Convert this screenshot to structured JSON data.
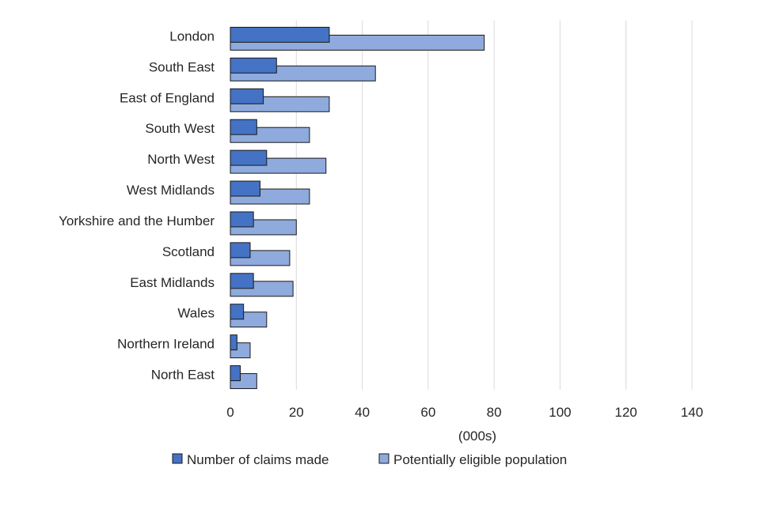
{
  "chart_data": {
    "type": "bar",
    "orientation": "horizontal",
    "title": "",
    "xlabel": "(000s)",
    "ylabel": "",
    "xlim": [
      0,
      140
    ],
    "xticks": [
      0,
      20,
      40,
      60,
      80,
      100,
      120,
      140
    ],
    "grid": true,
    "legend_position": "bottom",
    "categories": [
      "London",
      "South East",
      "East of England",
      "South West",
      "North West",
      "West Midlands",
      "Yorkshire and the Humber",
      "Scotland",
      "East Midlands",
      "Wales",
      "Northern Ireland",
      "North East"
    ],
    "series": [
      {
        "name": "Number of claims made",
        "color": "#4472c4",
        "values": [
          30,
          14,
          10,
          8,
          11,
          9,
          7,
          6,
          7,
          4,
          2,
          3
        ]
      },
      {
        "name": "Potentially eligible population",
        "color": "#8faadc",
        "values": [
          77,
          44,
          30,
          24,
          29,
          24,
          20,
          18,
          19,
          11,
          6,
          8
        ]
      }
    ]
  }
}
